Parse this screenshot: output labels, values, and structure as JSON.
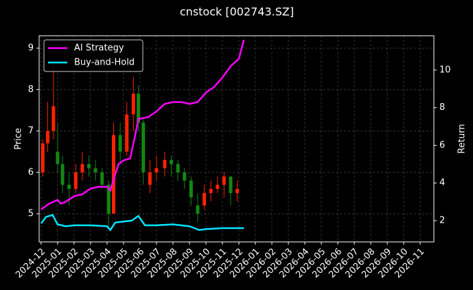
{
  "chart_data": {
    "type": "candlestick",
    "title": "cnstock [002743.SZ]",
    "ylabel": "Price",
    "y2label": "Return",
    "up_color": "#ff2200",
    "down_color": "#118811",
    "x": [
      0.1,
      0.4,
      0.75,
      1.0,
      1.3,
      1.7,
      2.1,
      2.5,
      2.9,
      3.3,
      3.7,
      4.1,
      4.4,
      4.8,
      5.2,
      5.6,
      5.9,
      6.2,
      6.6,
      7.0,
      7.5,
      7.9,
      8.3,
      8.7,
      9.1,
      9.5,
      9.9,
      10.3,
      10.7,
      11.1,
      11.5,
      11.9
    ],
    "open": [
      6.0,
      6.7,
      7.0,
      6.5,
      6.2,
      5.7,
      5.6,
      6.0,
      6.2,
      6.1,
      6.0,
      5.7,
      5.0,
      6.9,
      6.5,
      7.4,
      7.9,
      7.2,
      5.7,
      6.0,
      6.1,
      6.3,
      6.2,
      6.0,
      5.8,
      5.2,
      5.2,
      5.5,
      5.6,
      5.7,
      5.9,
      5.5
    ],
    "high": [
      6.8,
      7.7,
      8.6,
      7.2,
      6.4,
      6.0,
      6.2,
      6.5,
      6.4,
      6.3,
      6.1,
      5.8,
      7.2,
      7.2,
      7.7,
      8.3,
      8.1,
      7.3,
      6.3,
      6.4,
      6.5,
      6.4,
      6.3,
      6.1,
      5.9,
      5.5,
      5.7,
      5.8,
      5.9,
      6.0,
      5.9,
      5.8
    ],
    "low": [
      5.9,
      6.5,
      6.8,
      6.0,
      5.5,
      5.2,
      5.5,
      5.8,
      5.9,
      5.8,
      5.6,
      4.7,
      5.0,
      6.2,
      6.4,
      7.0,
      7.0,
      5.7,
      5.5,
      5.8,
      5.9,
      5.9,
      5.8,
      5.6,
      5.2,
      4.8,
      5.1,
      5.3,
      5.5,
      5.4,
      5.2,
      5.3
    ],
    "close": [
      6.7,
      7.0,
      7.6,
      6.2,
      5.7,
      5.6,
      6.0,
      6.2,
      6.1,
      6.0,
      5.7,
      5.0,
      6.9,
      6.5,
      7.4,
      7.9,
      7.2,
      6.0,
      6.0,
      6.1,
      6.3,
      6.2,
      6.0,
      5.8,
      5.4,
      5.0,
      5.5,
      5.6,
      5.7,
      5.9,
      5.5,
      5.6
    ],
    "series": [
      {
        "name": "AI Strategy",
        "color": "#ff00ff",
        "axis": "y2",
        "x": [
          0,
          0.5,
          1.0,
          1.2,
          1.5,
          2.0,
          2.5,
          3.0,
          3.5,
          4.0,
          4.2,
          4.4,
          4.7,
          5.0,
          5.4,
          5.7,
          5.9,
          6.5,
          7.0,
          7.5,
          8.0,
          8.5,
          9.0,
          9.5,
          10.0,
          10.5,
          11.0,
          11.5,
          12.0,
          12.3
        ],
        "values": [
          2.6,
          2.9,
          3.1,
          2.9,
          3.0,
          3.3,
          3.4,
          3.7,
          3.8,
          3.8,
          3.6,
          4.2,
          5.0,
          5.2,
          5.3,
          6.5,
          7.4,
          7.5,
          7.8,
          8.2,
          8.3,
          8.3,
          8.2,
          8.3,
          8.8,
          9.1,
          9.6,
          10.2,
          10.6,
          11.6
        ]
      },
      {
        "name": "Buy-and-Hold",
        "color": "#00e5ff",
        "axis": "y2",
        "x": [
          0,
          0.3,
          0.7,
          1.0,
          1.5,
          2.0,
          3.0,
          4.0,
          4.2,
          4.5,
          5.0,
          5.5,
          5.9,
          6.3,
          7.0,
          8.0,
          9.0,
          9.6,
          10.0,
          11.0,
          12.3
        ],
        "values": [
          1.85,
          2.2,
          2.3,
          1.8,
          1.7,
          1.75,
          1.75,
          1.7,
          1.5,
          1.9,
          1.95,
          2.0,
          2.25,
          1.75,
          1.75,
          1.8,
          1.7,
          1.5,
          1.55,
          1.6,
          1.6
        ]
      }
    ],
    "xlim": [
      -0.12,
      23.83
    ],
    "xticks": [
      {
        "value": 0,
        "label": "2024-12"
      },
      {
        "value": 1,
        "label": "2025-01"
      },
      {
        "value": 2,
        "label": "2025-02"
      },
      {
        "value": 3,
        "label": "2025-03"
      },
      {
        "value": 4,
        "label": "2025-04"
      },
      {
        "value": 5,
        "label": "2025-05"
      },
      {
        "value": 6,
        "label": "2025-06"
      },
      {
        "value": 7,
        "label": "2025-07"
      },
      {
        "value": 8,
        "label": "2025-08"
      },
      {
        "value": 9,
        "label": "2025-09"
      },
      {
        "value": 10,
        "label": "2025-10"
      },
      {
        "value": 11,
        "label": "2025-11"
      },
      {
        "value": 12,
        "label": "2025-12"
      },
      {
        "value": 13,
        "label": "2026-01"
      },
      {
        "value": 14,
        "label": "2026-02"
      },
      {
        "value": 15,
        "label": "2026-03"
      },
      {
        "value": 16,
        "label": "2026-04"
      },
      {
        "value": 17,
        "label": "2026-05"
      },
      {
        "value": 18,
        "label": "2026-06"
      },
      {
        "value": 19,
        "label": "2026-07"
      },
      {
        "value": 20,
        "label": "2026-08"
      },
      {
        "value": 21,
        "label": "2026-09"
      },
      {
        "value": 22,
        "label": "2026-10"
      },
      {
        "value": 23,
        "label": "2026-11"
      }
    ],
    "ylim": [
      4.32,
      9.3
    ],
    "yticks": [
      5,
      6,
      7,
      8,
      9
    ],
    "y2lim": [
      0.87,
      11.82
    ],
    "y2ticks": [
      2,
      4,
      6,
      8,
      10
    ],
    "grid": true,
    "legend": "upper left"
  }
}
